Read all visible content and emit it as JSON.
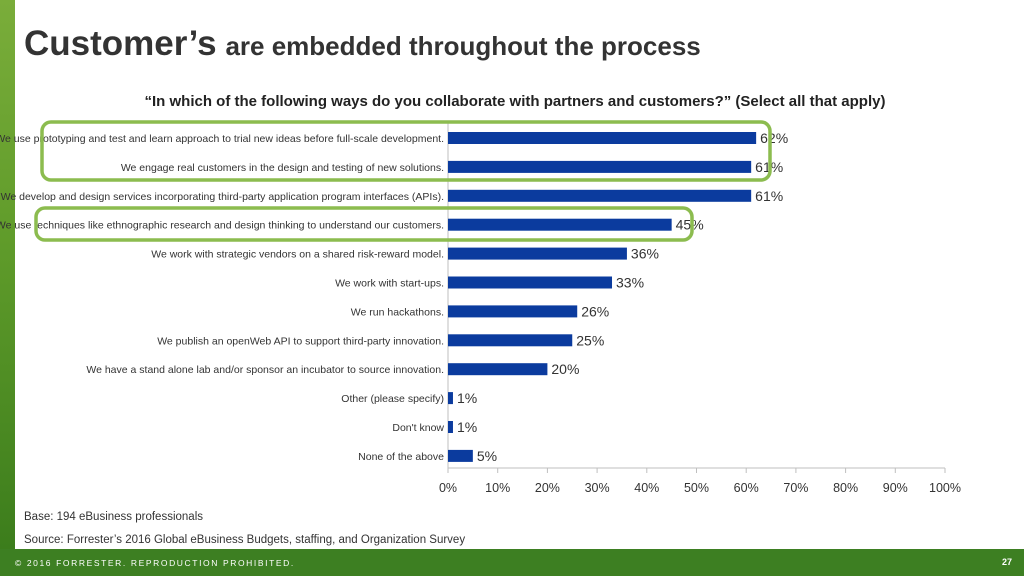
{
  "slide": {
    "title_lead": "Customer’s",
    "title_rest": "are embedded throughout the process",
    "question": "“In which of the following ways do you collaborate with partners and customers?”  (Select all that apply)",
    "base_note": "Base: 194 eBusiness professionals",
    "source_note": "Source: Forrester’s 2016 Global eBusiness Budgets, staffing, and Organization Survey",
    "copyright": "© 2016 FORRESTER. REPRODUCTION PROHIBITED.",
    "page_number": "27"
  },
  "colors": {
    "bar": "#0b3b9e",
    "highlight": "#8cbc4f",
    "footer": "#3d7f22"
  },
  "chart_data": {
    "type": "bar",
    "orientation": "horizontal",
    "title": "“In which of the following ways do you collaborate with partners and customers?”  (Select all that apply)",
    "categories": [
      "We use prototyping and test and learn approach to trial new ideas before full-scale development.",
      "We engage real customers in the design and testing of new solutions.",
      "We develop and design services incorporating third-party application program interfaces (APIs).",
      "We use techniques like ethnographic research and design thinking to understand our customers.",
      "We work with strategic vendors on a shared risk-reward model.",
      "We work with start-ups.",
      "We run hackathons.",
      "We publish an openWeb API to support third-party innovation.",
      "We have a stand alone lab and/or sponsor an incubator to source innovation.",
      "Other (please specify)",
      "Don't know",
      "None of the above"
    ],
    "values": [
      62,
      61,
      61,
      45,
      36,
      33,
      26,
      25,
      20,
      1,
      1,
      5
    ],
    "value_labels": [
      "62%",
      "61%",
      "61%",
      "45%",
      "36%",
      "33%",
      "26%",
      "25%",
      "20%",
      "1%",
      "1%",
      "5%"
    ],
    "xlim": [
      0,
      100
    ],
    "x_ticks": [
      "0%",
      "10%",
      "20%",
      "30%",
      "40%",
      "50%",
      "60%",
      "70%",
      "80%",
      "90%",
      "100%"
    ],
    "grid": false,
    "legend": "none",
    "highlighted_groups": [
      [
        0,
        1
      ],
      [
        3
      ]
    ]
  }
}
